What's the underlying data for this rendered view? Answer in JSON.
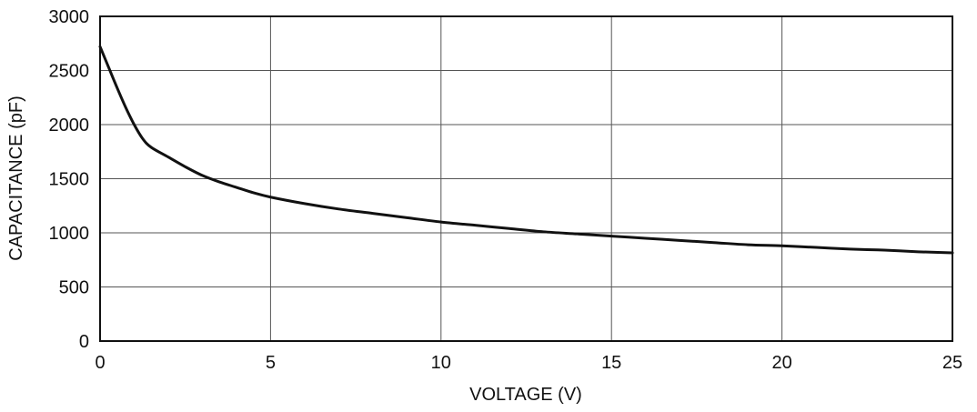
{
  "chart_data": {
    "type": "line",
    "title": "",
    "xlabel": "VOLTAGE (V)",
    "ylabel": "CAPACITANCE (pF)",
    "xlim": [
      0,
      25
    ],
    "ylim": [
      0,
      3000
    ],
    "x_ticks": [
      0,
      5,
      10,
      15,
      20,
      25
    ],
    "x_tick_labels": [
      "0",
      "5",
      "10",
      "15",
      "20",
      "25"
    ],
    "y_ticks": [
      0,
      500,
      1000,
      1500,
      2000,
      2500,
      3000
    ],
    "y_tick_labels": [
      "0",
      "500",
      "1000",
      "1500",
      "2000",
      "2500",
      "3000"
    ],
    "grid": true,
    "legend": "none",
    "line_color": "#111111",
    "grid_color": "#555555",
    "series": [
      {
        "x": [
          0,
          0.25,
          0.5,
          0.75,
          1,
          1.25,
          1.5,
          2,
          2.5,
          3,
          3.5,
          4,
          4.5,
          5,
          6,
          7,
          8,
          9,
          10,
          11,
          12,
          13,
          14,
          15,
          16,
          17,
          18,
          19,
          20,
          21,
          22,
          23,
          24,
          25
        ],
        "y": [
          2720,
          2530,
          2340,
          2160,
          2000,
          1870,
          1790,
          1700,
          1610,
          1530,
          1470,
          1420,
          1370,
          1330,
          1270,
          1220,
          1180,
          1140,
          1100,
          1070,
          1040,
          1010,
          990,
          970,
          950,
          930,
          910,
          890,
          880,
          865,
          850,
          840,
          825,
          815
        ]
      }
    ]
  }
}
